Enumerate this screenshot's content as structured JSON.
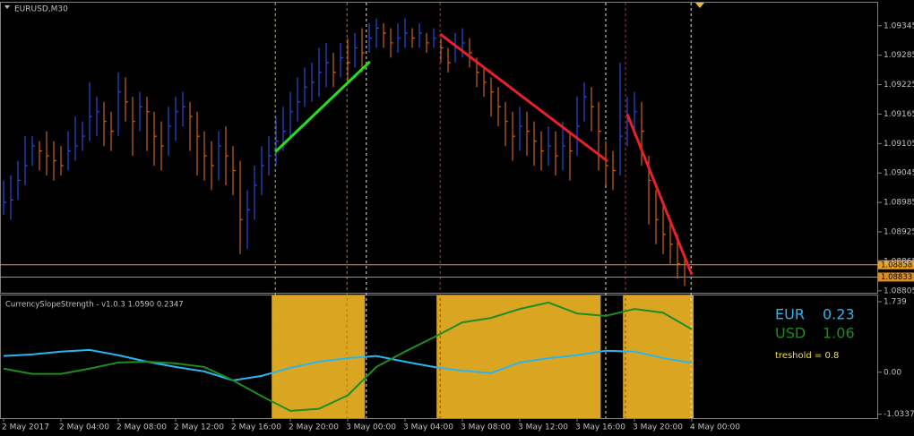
{
  "chart_data": [
    {
      "type": "ohlc",
      "title": "EURUSD,M30",
      "colors": {
        "up": "#2a4bd8",
        "down": "#c8601e"
      },
      "xlim": [
        -0.5,
        122
      ],
      "ylim": [
        1.08801,
        1.09392
      ],
      "yticks": [
        1.09345,
        1.09285,
        1.09225,
        1.09165,
        1.09105,
        1.09045,
        1.08985,
        1.08925,
        1.08865,
        1.08805
      ],
      "xticks": [
        {
          "value": 0,
          "label": "2 May 2017"
        },
        {
          "value": 8,
          "label": "2 May 04:00"
        },
        {
          "value": 16,
          "label": "2 May 08:00"
        },
        {
          "value": 24,
          "label": "2 May 12:00"
        },
        {
          "value": 32,
          "label": "2 May 16:00"
        },
        {
          "value": 40,
          "label": "2 May 20:00"
        },
        {
          "value": 48,
          "label": "3 May 00:00"
        },
        {
          "value": 56,
          "label": "3 May 04:00"
        },
        {
          "value": 64,
          "label": "3 May 08:00"
        },
        {
          "value": 72,
          "label": "3 May 12:00"
        },
        {
          "value": 80,
          "label": "3 May 16:00"
        },
        {
          "value": 88,
          "label": "3 May 20:00"
        },
        {
          "value": 96,
          "label": "4 May 00:00"
        }
      ],
      "close": [
        1.08985,
        1.0899,
        1.0903,
        1.0906,
        1.091,
        1.0909,
        1.0908,
        1.0907,
        1.0906,
        1.0909,
        1.091,
        1.0912,
        1.0916,
        1.0917,
        1.0915,
        1.0913,
        1.0921,
        1.0919,
        1.0915,
        1.0918,
        1.0917,
        1.0912,
        1.091,
        1.0914,
        1.0917,
        1.0918,
        1.0916,
        1.0912,
        1.0908,
        1.0906,
        1.091,
        1.0908,
        1.0905,
        1.0895,
        1.0897,
        1.0902,
        1.0906,
        1.0908,
        1.0911,
        1.0913,
        1.0917,
        1.0919,
        1.0922,
        1.0923,
        1.0925,
        1.0927,
        1.0925,
        1.0928,
        1.0927,
        1.093,
        1.0929,
        1.0932,
        1.0934,
        1.0933,
        1.0931,
        1.0932,
        1.0933,
        1.0932,
        1.0933,
        1.0931,
        1.0932,
        1.093,
        1.0927,
        1.093,
        1.0931,
        1.0929,
        1.0925,
        1.0923,
        1.0921,
        1.0918,
        1.0915,
        1.0912,
        1.0914,
        1.0913,
        1.0911,
        1.0909,
        1.091,
        1.0908,
        1.091,
        1.0909,
        1.0914,
        1.092,
        1.0918,
        1.0913,
        1.0906,
        1.0905,
        1.0912,
        1.0915,
        1.0917,
        1.0913,
        1.0903,
        1.0895,
        1.0892,
        1.089,
        1.0886,
        1.08833
      ],
      "high": [
        1.0903,
        1.0904,
        1.0907,
        1.0912,
        1.0912,
        1.0911,
        1.0913,
        1.0911,
        1.091,
        1.0913,
        1.0916,
        1.0915,
        1.0923,
        1.092,
        1.0919,
        1.0917,
        1.0925,
        1.0924,
        1.092,
        1.0921,
        1.092,
        1.0917,
        1.0915,
        1.0918,
        1.092,
        1.0921,
        1.0919,
        1.0917,
        1.0913,
        1.0911,
        1.0913,
        1.0914,
        1.091,
        1.0907,
        1.0901,
        1.0906,
        1.091,
        1.0912,
        1.0916,
        1.0918,
        1.0921,
        1.0924,
        1.0926,
        1.0927,
        1.093,
        1.0931,
        1.0929,
        1.0931,
        1.0932,
        1.0933,
        1.0934,
        1.0935,
        1.0936,
        1.0935,
        1.0934,
        1.0935,
        1.0936,
        1.0934,
        1.0935,
        1.0933,
        1.0934,
        1.0932,
        1.093,
        1.0933,
        1.0934,
        1.0932,
        1.0928,
        1.0926,
        1.0924,
        1.0922,
        1.0919,
        1.0917,
        1.0918,
        1.0917,
        1.0915,
        1.0913,
        1.0914,
        1.0913,
        1.0915,
        1.0913,
        1.092,
        1.0923,
        1.0922,
        1.0919,
        1.0911,
        1.0909,
        1.0927,
        1.092,
        1.0921,
        1.0919,
        1.0908,
        1.0901,
        1.0898,
        1.0895,
        1.0892,
        1.0887
      ],
      "low": [
        1.0896,
        1.0895,
        1.0899,
        1.0902,
        1.0906,
        1.0905,
        1.0904,
        1.0903,
        1.0904,
        1.0905,
        1.0907,
        1.0909,
        1.0911,
        1.0912,
        1.091,
        1.0909,
        1.0912,
        1.0915,
        1.0908,
        1.0913,
        1.0909,
        1.0906,
        1.0905,
        1.0908,
        1.0911,
        1.0914,
        1.0909,
        1.0904,
        1.0903,
        1.0901,
        1.0903,
        1.0902,
        1.09,
        1.0888,
        1.0889,
        1.0895,
        1.09,
        1.0904,
        1.0906,
        1.0909,
        1.0912,
        1.0915,
        1.0918,
        1.0919,
        1.092,
        1.0922,
        1.0922,
        1.0924,
        1.0923,
        1.0926,
        1.0925,
        1.0929,
        1.093,
        1.093,
        1.0928,
        1.0929,
        1.093,
        1.093,
        1.093,
        1.0929,
        1.093,
        1.0927,
        1.0925,
        1.0927,
        1.0928,
        1.0926,
        1.0922,
        1.092,
        1.0916,
        1.0914,
        1.091,
        1.0907,
        1.0909,
        1.0908,
        1.0906,
        1.0905,
        1.0906,
        1.0904,
        1.0905,
        1.0903,
        1.0908,
        1.0915,
        1.0913,
        1.0905,
        1.0902,
        1.0901,
        1.0904,
        1.091,
        1.0912,
        1.0906,
        1.0894,
        1.089,
        1.0888,
        1.0886,
        1.0883,
        1.08815
      ],
      "trendlines": [
        {
          "color": "#22e01e",
          "x": [
            37.9,
            51.1
          ],
          "y": [
            1.09088,
            1.09272
          ]
        },
        {
          "color": "#e8202a",
          "x": [
            60.9,
            84.25
          ],
          "y": [
            1.09328,
            1.09069
          ]
        },
        {
          "color": "#e8202a",
          "x": [
            87.0,
            96.0
          ],
          "y": [
            1.09165,
            1.08838
          ]
        }
      ],
      "vlines": [
        {
          "x": 37.9,
          "color": "#9acd32"
        },
        {
          "x": 47.9,
          "color": "#d2691e"
        },
        {
          "x": 50.6,
          "color": "#e0e0e0"
        },
        {
          "x": 60.9,
          "color": "#e02020"
        },
        {
          "x": 84,
          "color": "#e0e0e0"
        },
        {
          "x": 86.75,
          "color": "#e02020"
        },
        {
          "x": 95.9,
          "color": "#e0e0e0"
        }
      ],
      "price_lines": [
        {
          "value": 1.08858,
          "color": "#e8a020"
        },
        {
          "value": 1.08833,
          "color": "#d89020"
        }
      ]
    },
    {
      "type": "line",
      "title": "CurrencySlopeStrength - v1.0.3 1.0590 0.2347",
      "annotation": "treshold = 0.8",
      "zone_color": "#daa520",
      "ylim": [
        -1.13,
        1.894
      ],
      "yticks": [
        1.739,
        {
          "value": 0,
          "label": "0.00"
        },
        -1.0337
      ],
      "zones": [
        [
          37.4,
          50.4
        ],
        [
          60.4,
          83.3
        ],
        [
          86.4,
          96.25
        ]
      ],
      "x": [
        0,
        4,
        8,
        12,
        16,
        20,
        24,
        28,
        32,
        36,
        40,
        44,
        48,
        52,
        56,
        60,
        64,
        68,
        72,
        76,
        80,
        84,
        88,
        92,
        96
      ],
      "series": [
        {
          "name": "EUR",
          "color": "#29b6f0",
          "values": [
            0.4,
            0.44,
            0.51,
            0.55,
            0.42,
            0.26,
            0.13,
            0.02,
            -0.2,
            -0.09,
            0.11,
            0.26,
            0.35,
            0.4,
            0.26,
            0.13,
            0.04,
            -0.02,
            0.24,
            0.35,
            0.42,
            0.53,
            0.51,
            0.35,
            0.23
          ]
        },
        {
          "name": "USD",
          "color": "#1e8c1e",
          "values": [
            0.09,
            -0.04,
            -0.04,
            0.09,
            0.24,
            0.26,
            0.22,
            0.13,
            -0.2,
            -0.59,
            -0.95,
            -0.9,
            -0.57,
            0.13,
            0.51,
            0.86,
            1.23,
            1.34,
            1.56,
            1.72,
            1.45,
            1.39,
            1.56,
            1.47,
            1.06
          ]
        }
      ]
    }
  ]
}
